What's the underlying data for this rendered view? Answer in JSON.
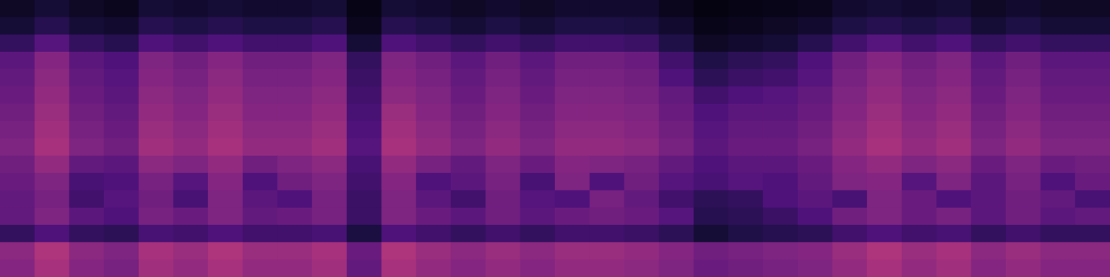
{
  "chart_data": {
    "type": "heatmap",
    "tick_labels": false,
    "grid": false,
    "value_range": [
      0,
      1.2
    ],
    "cells": [
      [
        0.08,
        0.12,
        0.08,
        0.06,
        0.12,
        0.1,
        0.12,
        0.1,
        0.1,
        0.12,
        0.04,
        0.12,
        0.1,
        0.08,
        0.1,
        0.08,
        0.1,
        0.1,
        0.1,
        0.06,
        0.03,
        0.04,
        0.05,
        0.06,
        0.1,
        0.12,
        0.1,
        0.12,
        0.08,
        0.1,
        0.08,
        0.08
      ],
      [
        0.12,
        0.18,
        0.12,
        0.1,
        0.18,
        0.15,
        0.18,
        0.15,
        0.15,
        0.18,
        0.06,
        0.18,
        0.15,
        0.12,
        0.15,
        0.12,
        0.15,
        0.15,
        0.14,
        0.1,
        0.05,
        0.06,
        0.08,
        0.1,
        0.15,
        0.18,
        0.15,
        0.18,
        0.12,
        0.15,
        0.12,
        0.12
      ],
      [
        0.22,
        0.32,
        0.22,
        0.18,
        0.3,
        0.26,
        0.3,
        0.26,
        0.26,
        0.3,
        0.12,
        0.3,
        0.26,
        0.22,
        0.26,
        0.22,
        0.26,
        0.26,
        0.24,
        0.16,
        0.08,
        0.1,
        0.12,
        0.18,
        0.26,
        0.32,
        0.26,
        0.3,
        0.22,
        0.26,
        0.22,
        0.22
      ],
      [
        0.34,
        0.46,
        0.34,
        0.3,
        0.44,
        0.4,
        0.46,
        0.4,
        0.4,
        0.44,
        0.22,
        0.44,
        0.4,
        0.34,
        0.4,
        0.34,
        0.4,
        0.4,
        0.38,
        0.26,
        0.16,
        0.2,
        0.22,
        0.3,
        0.4,
        0.46,
        0.4,
        0.44,
        0.34,
        0.4,
        0.34,
        0.34
      ],
      [
        0.36,
        0.48,
        0.36,
        0.32,
        0.46,
        0.42,
        0.48,
        0.42,
        0.42,
        0.46,
        0.24,
        0.46,
        0.42,
        0.36,
        0.42,
        0.36,
        0.42,
        0.42,
        0.4,
        0.3,
        0.2,
        0.24,
        0.26,
        0.32,
        0.42,
        0.48,
        0.42,
        0.46,
        0.36,
        0.42,
        0.36,
        0.36
      ],
      [
        0.38,
        0.5,
        0.38,
        0.34,
        0.48,
        0.44,
        0.5,
        0.44,
        0.44,
        0.48,
        0.26,
        0.48,
        0.44,
        0.38,
        0.44,
        0.38,
        0.44,
        0.44,
        0.42,
        0.36,
        0.26,
        0.3,
        0.32,
        0.36,
        0.44,
        0.5,
        0.44,
        0.48,
        0.38,
        0.44,
        0.38,
        0.38
      ],
      [
        0.4,
        0.52,
        0.4,
        0.36,
        0.5,
        0.46,
        0.52,
        0.46,
        0.46,
        0.5,
        0.28,
        0.52,
        0.46,
        0.4,
        0.46,
        0.4,
        0.46,
        0.46,
        0.44,
        0.38,
        0.3,
        0.34,
        0.34,
        0.38,
        0.46,
        0.52,
        0.46,
        0.5,
        0.4,
        0.46,
        0.4,
        0.4
      ],
      [
        0.42,
        0.54,
        0.42,
        0.38,
        0.52,
        0.48,
        0.54,
        0.48,
        0.48,
        0.52,
        0.3,
        0.54,
        0.48,
        0.42,
        0.48,
        0.42,
        0.48,
        0.48,
        0.46,
        0.4,
        0.32,
        0.36,
        0.36,
        0.4,
        0.48,
        0.54,
        0.48,
        0.52,
        0.42,
        0.48,
        0.42,
        0.42
      ],
      [
        0.44,
        0.56,
        0.44,
        0.4,
        0.54,
        0.5,
        0.56,
        0.5,
        0.5,
        0.54,
        0.32,
        0.56,
        0.5,
        0.44,
        0.5,
        0.44,
        0.5,
        0.5,
        0.48,
        0.42,
        0.34,
        0.38,
        0.38,
        0.42,
        0.5,
        0.56,
        0.5,
        0.54,
        0.44,
        0.5,
        0.44,
        0.44
      ],
      [
        0.4,
        0.5,
        0.36,
        0.34,
        0.48,
        0.44,
        0.5,
        0.4,
        0.44,
        0.48,
        0.28,
        0.5,
        0.42,
        0.36,
        0.44,
        0.38,
        0.46,
        0.44,
        0.42,
        0.36,
        0.3,
        0.34,
        0.34,
        0.38,
        0.46,
        0.5,
        0.44,
        0.48,
        0.38,
        0.44,
        0.38,
        0.4
      ],
      [
        0.38,
        0.44,
        0.28,
        0.3,
        0.42,
        0.32,
        0.46,
        0.3,
        0.4,
        0.44,
        0.26,
        0.46,
        0.3,
        0.34,
        0.42,
        0.28,
        0.44,
        0.3,
        0.4,
        0.32,
        0.28,
        0.32,
        0.3,
        0.36,
        0.44,
        0.46,
        0.32,
        0.44,
        0.34,
        0.42,
        0.3,
        0.38
      ],
      [
        0.36,
        0.42,
        0.26,
        0.32,
        0.4,
        0.28,
        0.44,
        0.34,
        0.3,
        0.42,
        0.24,
        0.44,
        0.34,
        0.26,
        0.4,
        0.32,
        0.3,
        0.42,
        0.36,
        0.26,
        0.2,
        0.22,
        0.3,
        0.34,
        0.28,
        0.44,
        0.38,
        0.3,
        0.34,
        0.4,
        0.36,
        0.28
      ],
      [
        0.36,
        0.44,
        0.34,
        0.3,
        0.42,
        0.38,
        0.44,
        0.36,
        0.38,
        0.42,
        0.24,
        0.44,
        0.38,
        0.34,
        0.4,
        0.34,
        0.38,
        0.4,
        0.38,
        0.32,
        0.18,
        0.2,
        0.24,
        0.3,
        0.4,
        0.44,
        0.38,
        0.42,
        0.34,
        0.4,
        0.34,
        0.36
      ],
      [
        0.22,
        0.3,
        0.22,
        0.2,
        0.28,
        0.26,
        0.3,
        0.26,
        0.26,
        0.28,
        0.14,
        0.3,
        0.26,
        0.22,
        0.26,
        0.22,
        0.26,
        0.26,
        0.24,
        0.2,
        0.12,
        0.16,
        0.18,
        0.2,
        0.26,
        0.3,
        0.26,
        0.28,
        0.22,
        0.26,
        0.22,
        0.22
      ],
      [
        0.48,
        0.58,
        0.48,
        0.44,
        0.56,
        0.52,
        0.58,
        0.52,
        0.52,
        0.56,
        0.38,
        0.58,
        0.52,
        0.48,
        0.52,
        0.48,
        0.52,
        0.52,
        0.5,
        0.46,
        0.4,
        0.42,
        0.44,
        0.46,
        0.52,
        0.58,
        0.52,
        0.56,
        0.48,
        0.52,
        0.48,
        0.48
      ],
      [
        0.46,
        0.56,
        0.46,
        0.42,
        0.54,
        0.5,
        0.56,
        0.5,
        0.5,
        0.54,
        0.36,
        0.56,
        0.5,
        0.46,
        0.5,
        0.46,
        0.5,
        0.5,
        0.48,
        0.44,
        0.38,
        0.4,
        0.42,
        0.44,
        0.5,
        0.56,
        0.5,
        0.54,
        0.46,
        0.5,
        0.46,
        0.46
      ]
    ]
  }
}
